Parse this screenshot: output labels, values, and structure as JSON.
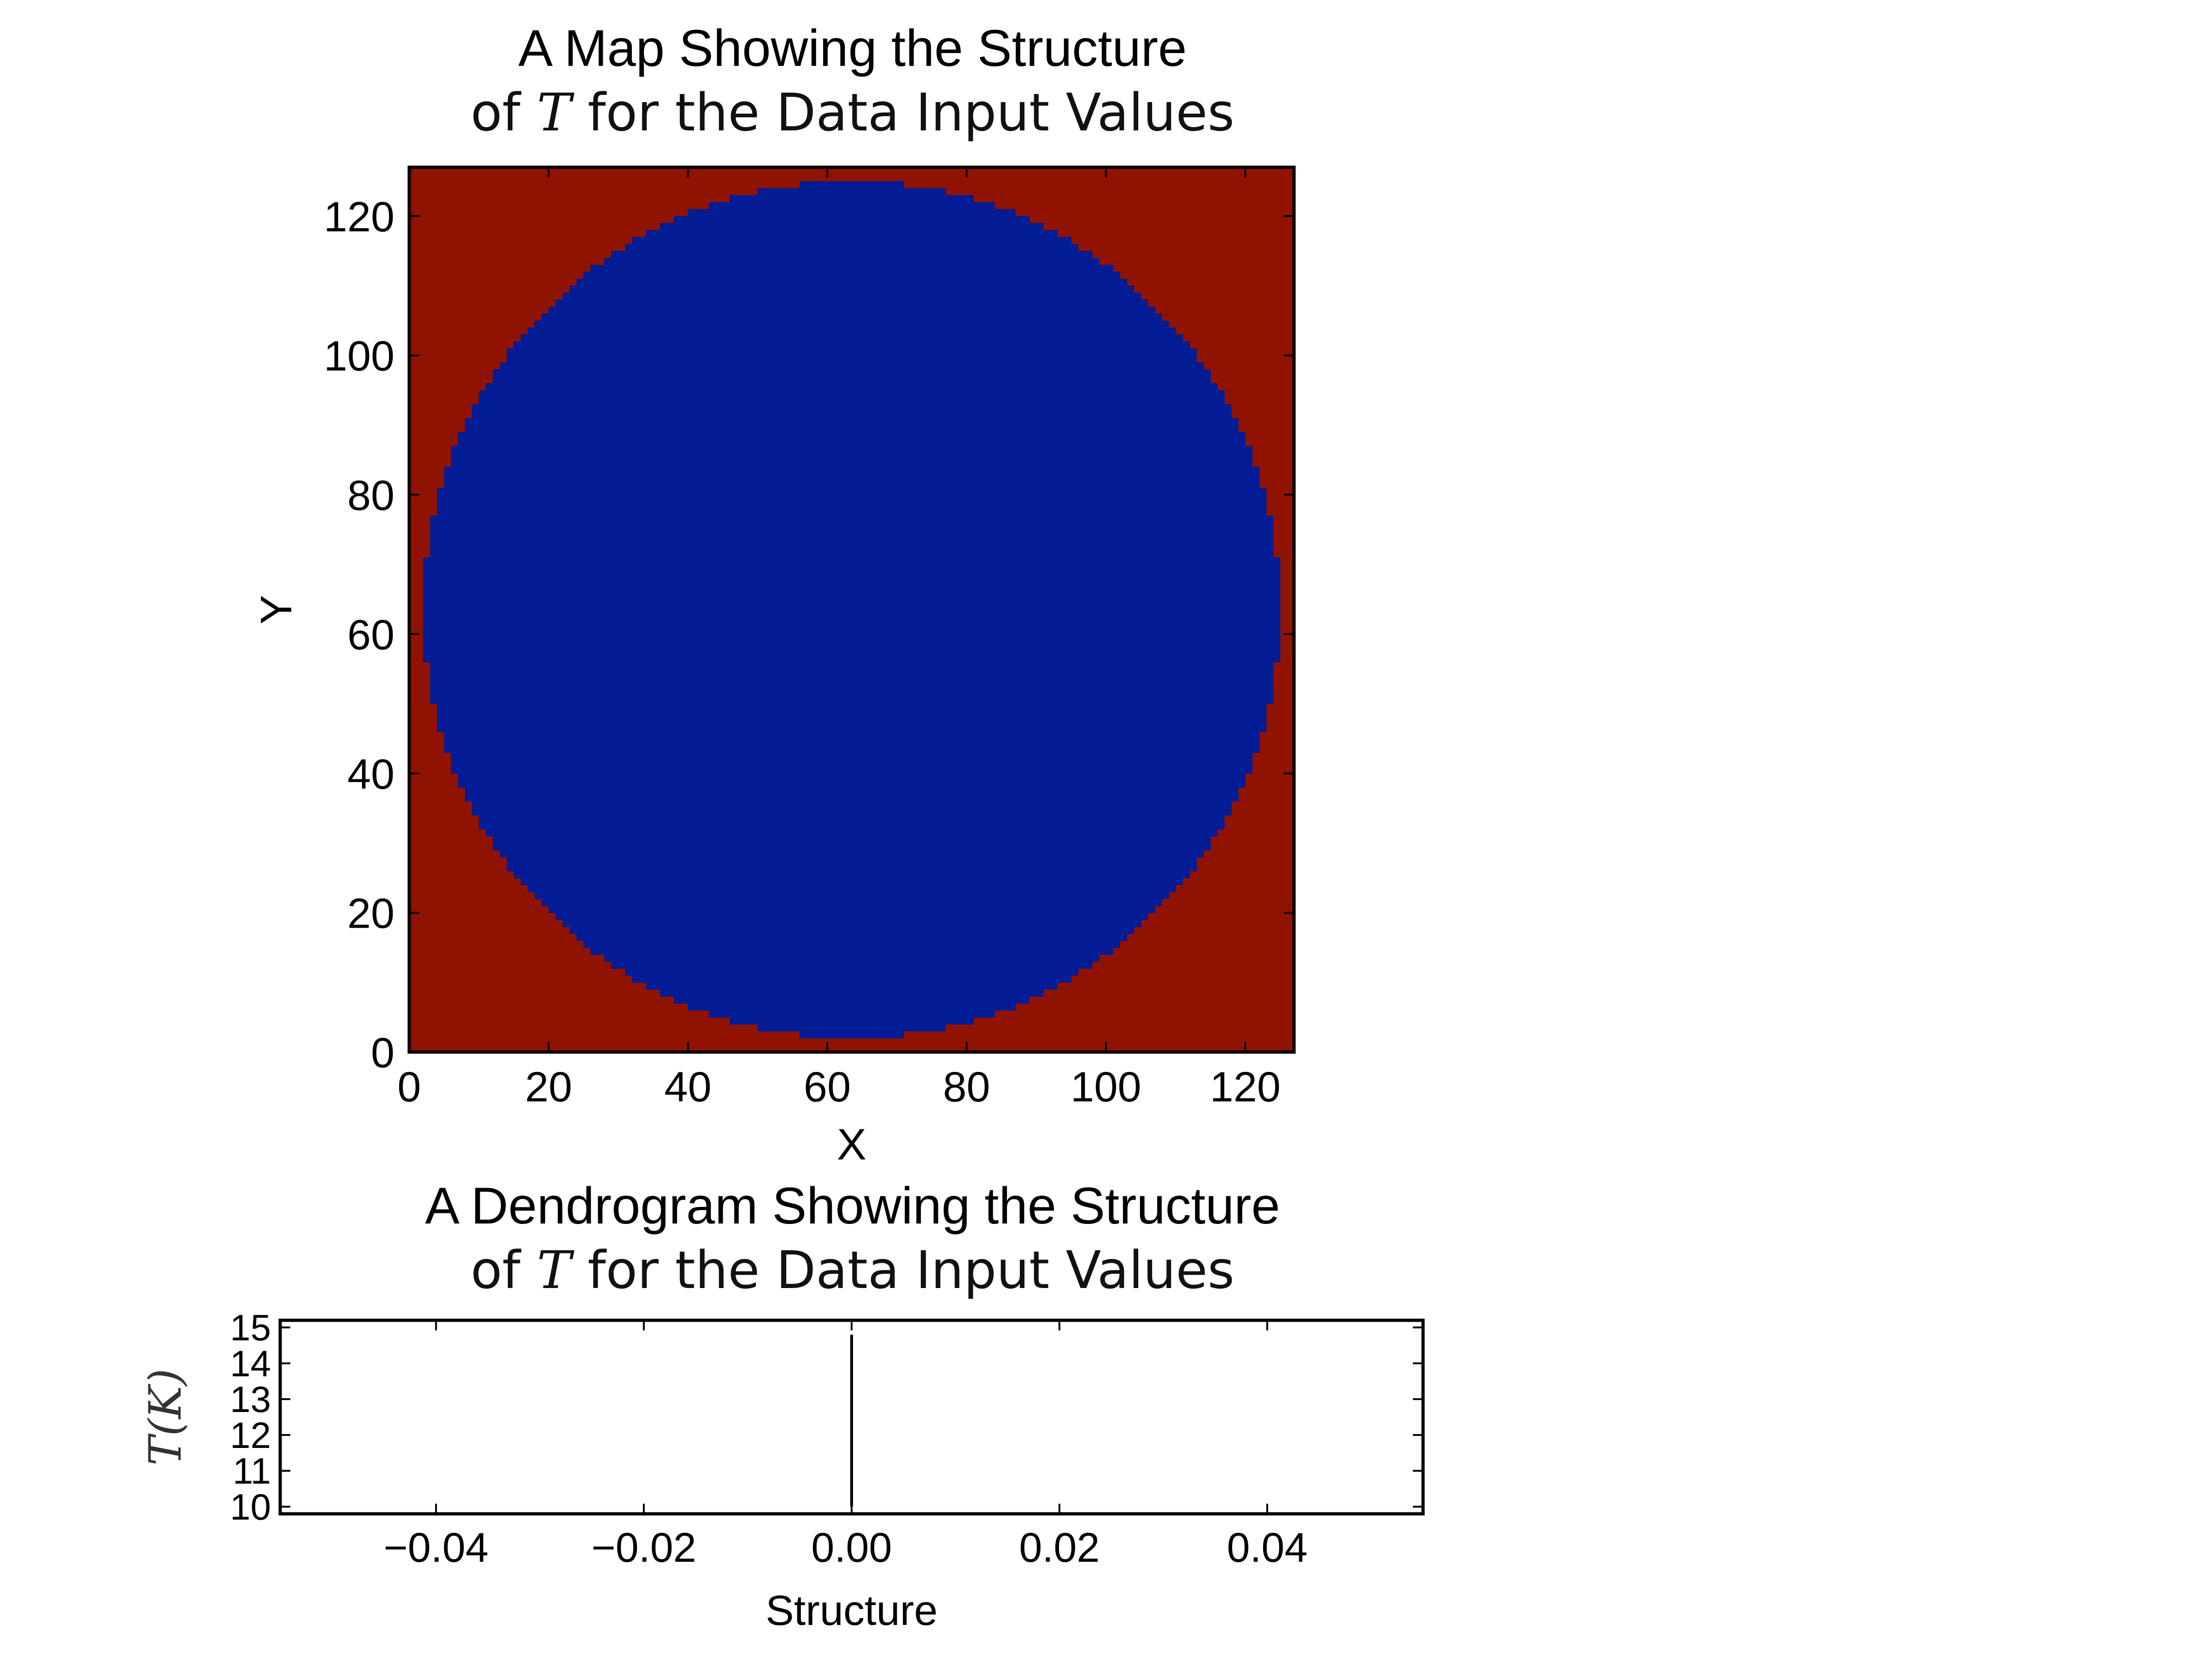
{
  "chart_data": [
    {
      "type": "heatmap",
      "title": "A Map Showing the Structure",
      "subtitle": {
        "prefix": "of ",
        "symbol": "T",
        "suffix": " for the Data Input Values"
      },
      "xlabel": "X",
      "ylabel": "Y",
      "xlim": [
        0,
        127
      ],
      "ylim": [
        0,
        127
      ],
      "xticks": [
        0,
        20,
        40,
        60,
        80,
        100,
        120
      ],
      "yticks": [
        0,
        20,
        40,
        60,
        80,
        100,
        120
      ],
      "xtick_labels": [
        "0",
        "20",
        "40",
        "60",
        "80",
        "100",
        "120"
      ],
      "ytick_labels": [
        "0",
        "20",
        "40",
        "60",
        "80",
        "100",
        "120"
      ],
      "grid_size": 128,
      "colors": {
        "background": "#8f1300",
        "structure": "#011c95"
      },
      "structure_region": {
        "shape": "circle",
        "center": [
          63.5,
          63.5
        ],
        "radius": 61.5
      },
      "grid": false
    },
    {
      "type": "line",
      "title": "A Dendrogram Showing the Structure",
      "subtitle": {
        "prefix": "of ",
        "symbol": "T",
        "suffix": " for the Data Input Values"
      },
      "xlabel": "Structure",
      "ylabel": "T(K)",
      "xlim": [
        -0.055,
        0.055
      ],
      "ylim": [
        9.8,
        15.2
      ],
      "xticks": [
        -0.04,
        -0.02,
        0.0,
        0.02,
        0.04
      ],
      "xtick_labels": [
        "−0.04",
        "−0.02",
        "0.00",
        "0.02",
        "0.04"
      ],
      "yticks": [
        10,
        11,
        12,
        13,
        14,
        15
      ],
      "ytick_labels": [
        "10",
        "11",
        "12",
        "13",
        "14",
        "15"
      ],
      "series": [
        {
          "x": [
            0.0,
            0.0
          ],
          "y": [
            10.0,
            14.8
          ],
          "color": "#000000"
        }
      ],
      "grid": false
    }
  ]
}
